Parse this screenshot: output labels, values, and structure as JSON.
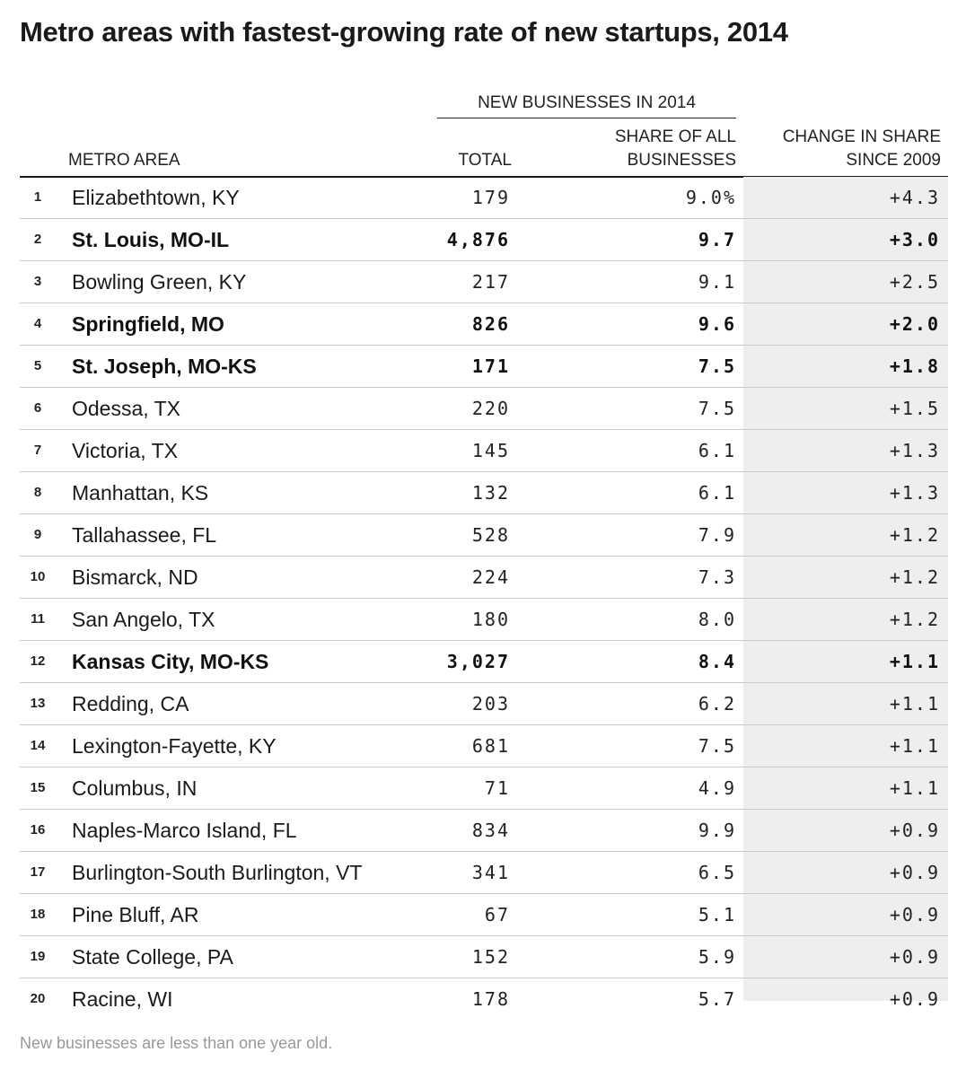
{
  "chart_data": {
    "type": "table",
    "title": "Metro areas with fastest-growing rate of new startups, 2014",
    "column_group": "NEW BUSINESSES IN 2014",
    "columns": {
      "metro": "METRO AREA",
      "total": "TOTAL",
      "share_line1": "SHARE OF ALL",
      "share_line2": "BUSINESSES",
      "change_line1": "CHANGE IN SHARE",
      "change_line2": "SINCE 2009"
    },
    "rows": [
      {
        "rank": "1",
        "metro": "Elizabethtown, KY",
        "total": "179",
        "share": "9.0%",
        "change": "+4.3",
        "bold": false
      },
      {
        "rank": "2",
        "metro": "St. Louis, MO-IL",
        "total": "4,876",
        "share": "9.7",
        "change": "+3.0",
        "bold": true
      },
      {
        "rank": "3",
        "metro": "Bowling Green, KY",
        "total": "217",
        "share": "9.1",
        "change": "+2.5",
        "bold": false
      },
      {
        "rank": "4",
        "metro": "Springfield, MO",
        "total": "826",
        "share": "9.6",
        "change": "+2.0",
        "bold": true
      },
      {
        "rank": "5",
        "metro": "St. Joseph, MO-KS",
        "total": "171",
        "share": "7.5",
        "change": "+1.8",
        "bold": true
      },
      {
        "rank": "6",
        "metro": "Odessa, TX",
        "total": "220",
        "share": "7.5",
        "change": "+1.5",
        "bold": false
      },
      {
        "rank": "7",
        "metro": "Victoria, TX",
        "total": "145",
        "share": "6.1",
        "change": "+1.3",
        "bold": false
      },
      {
        "rank": "8",
        "metro": "Manhattan, KS",
        "total": "132",
        "share": "6.1",
        "change": "+1.3",
        "bold": false
      },
      {
        "rank": "9",
        "metro": "Tallahassee, FL",
        "total": "528",
        "share": "7.9",
        "change": "+1.2",
        "bold": false
      },
      {
        "rank": "10",
        "metro": "Bismarck, ND",
        "total": "224",
        "share": "7.3",
        "change": "+1.2",
        "bold": false
      },
      {
        "rank": "11",
        "metro": "San Angelo, TX",
        "total": "180",
        "share": "8.0",
        "change": "+1.2",
        "bold": false
      },
      {
        "rank": "12",
        "metro": "Kansas City, MO-KS",
        "total": "3,027",
        "share": "8.4",
        "change": "+1.1",
        "bold": true
      },
      {
        "rank": "13",
        "metro": "Redding, CA",
        "total": "203",
        "share": "6.2",
        "change": "+1.1",
        "bold": false
      },
      {
        "rank": "14",
        "metro": "Lexington-Fayette, KY",
        "total": "681",
        "share": "7.5",
        "change": "+1.1",
        "bold": false
      },
      {
        "rank": "15",
        "metro": "Columbus, IN",
        "total": "71",
        "share": "4.9",
        "change": "+1.1",
        "bold": false
      },
      {
        "rank": "16",
        "metro": "Naples-Marco Island, FL",
        "total": "834",
        "share": "9.9",
        "change": "+0.9",
        "bold": false
      },
      {
        "rank": "17",
        "metro": "Burlington-South Burlington, VT",
        "total": "341",
        "share": "6.5",
        "change": "+0.9",
        "bold": false
      },
      {
        "rank": "18",
        "metro": "Pine Bluff, AR",
        "total": "67",
        "share": "5.1",
        "change": "+0.9",
        "bold": false
      },
      {
        "rank": "19",
        "metro": "State College, PA",
        "total": "152",
        "share": "5.9",
        "change": "+0.9",
        "bold": false
      },
      {
        "rank": "20",
        "metro": "Racine, WI",
        "total": "178",
        "share": "5.7",
        "change": "+0.9",
        "bold": false
      }
    ],
    "footnote": "New businesses are less than one year old.",
    "colors": {
      "text": "#1a1a1a",
      "rule": "#c9c9c9",
      "shade": "#eeeeee",
      "footnote": "#999999"
    }
  }
}
